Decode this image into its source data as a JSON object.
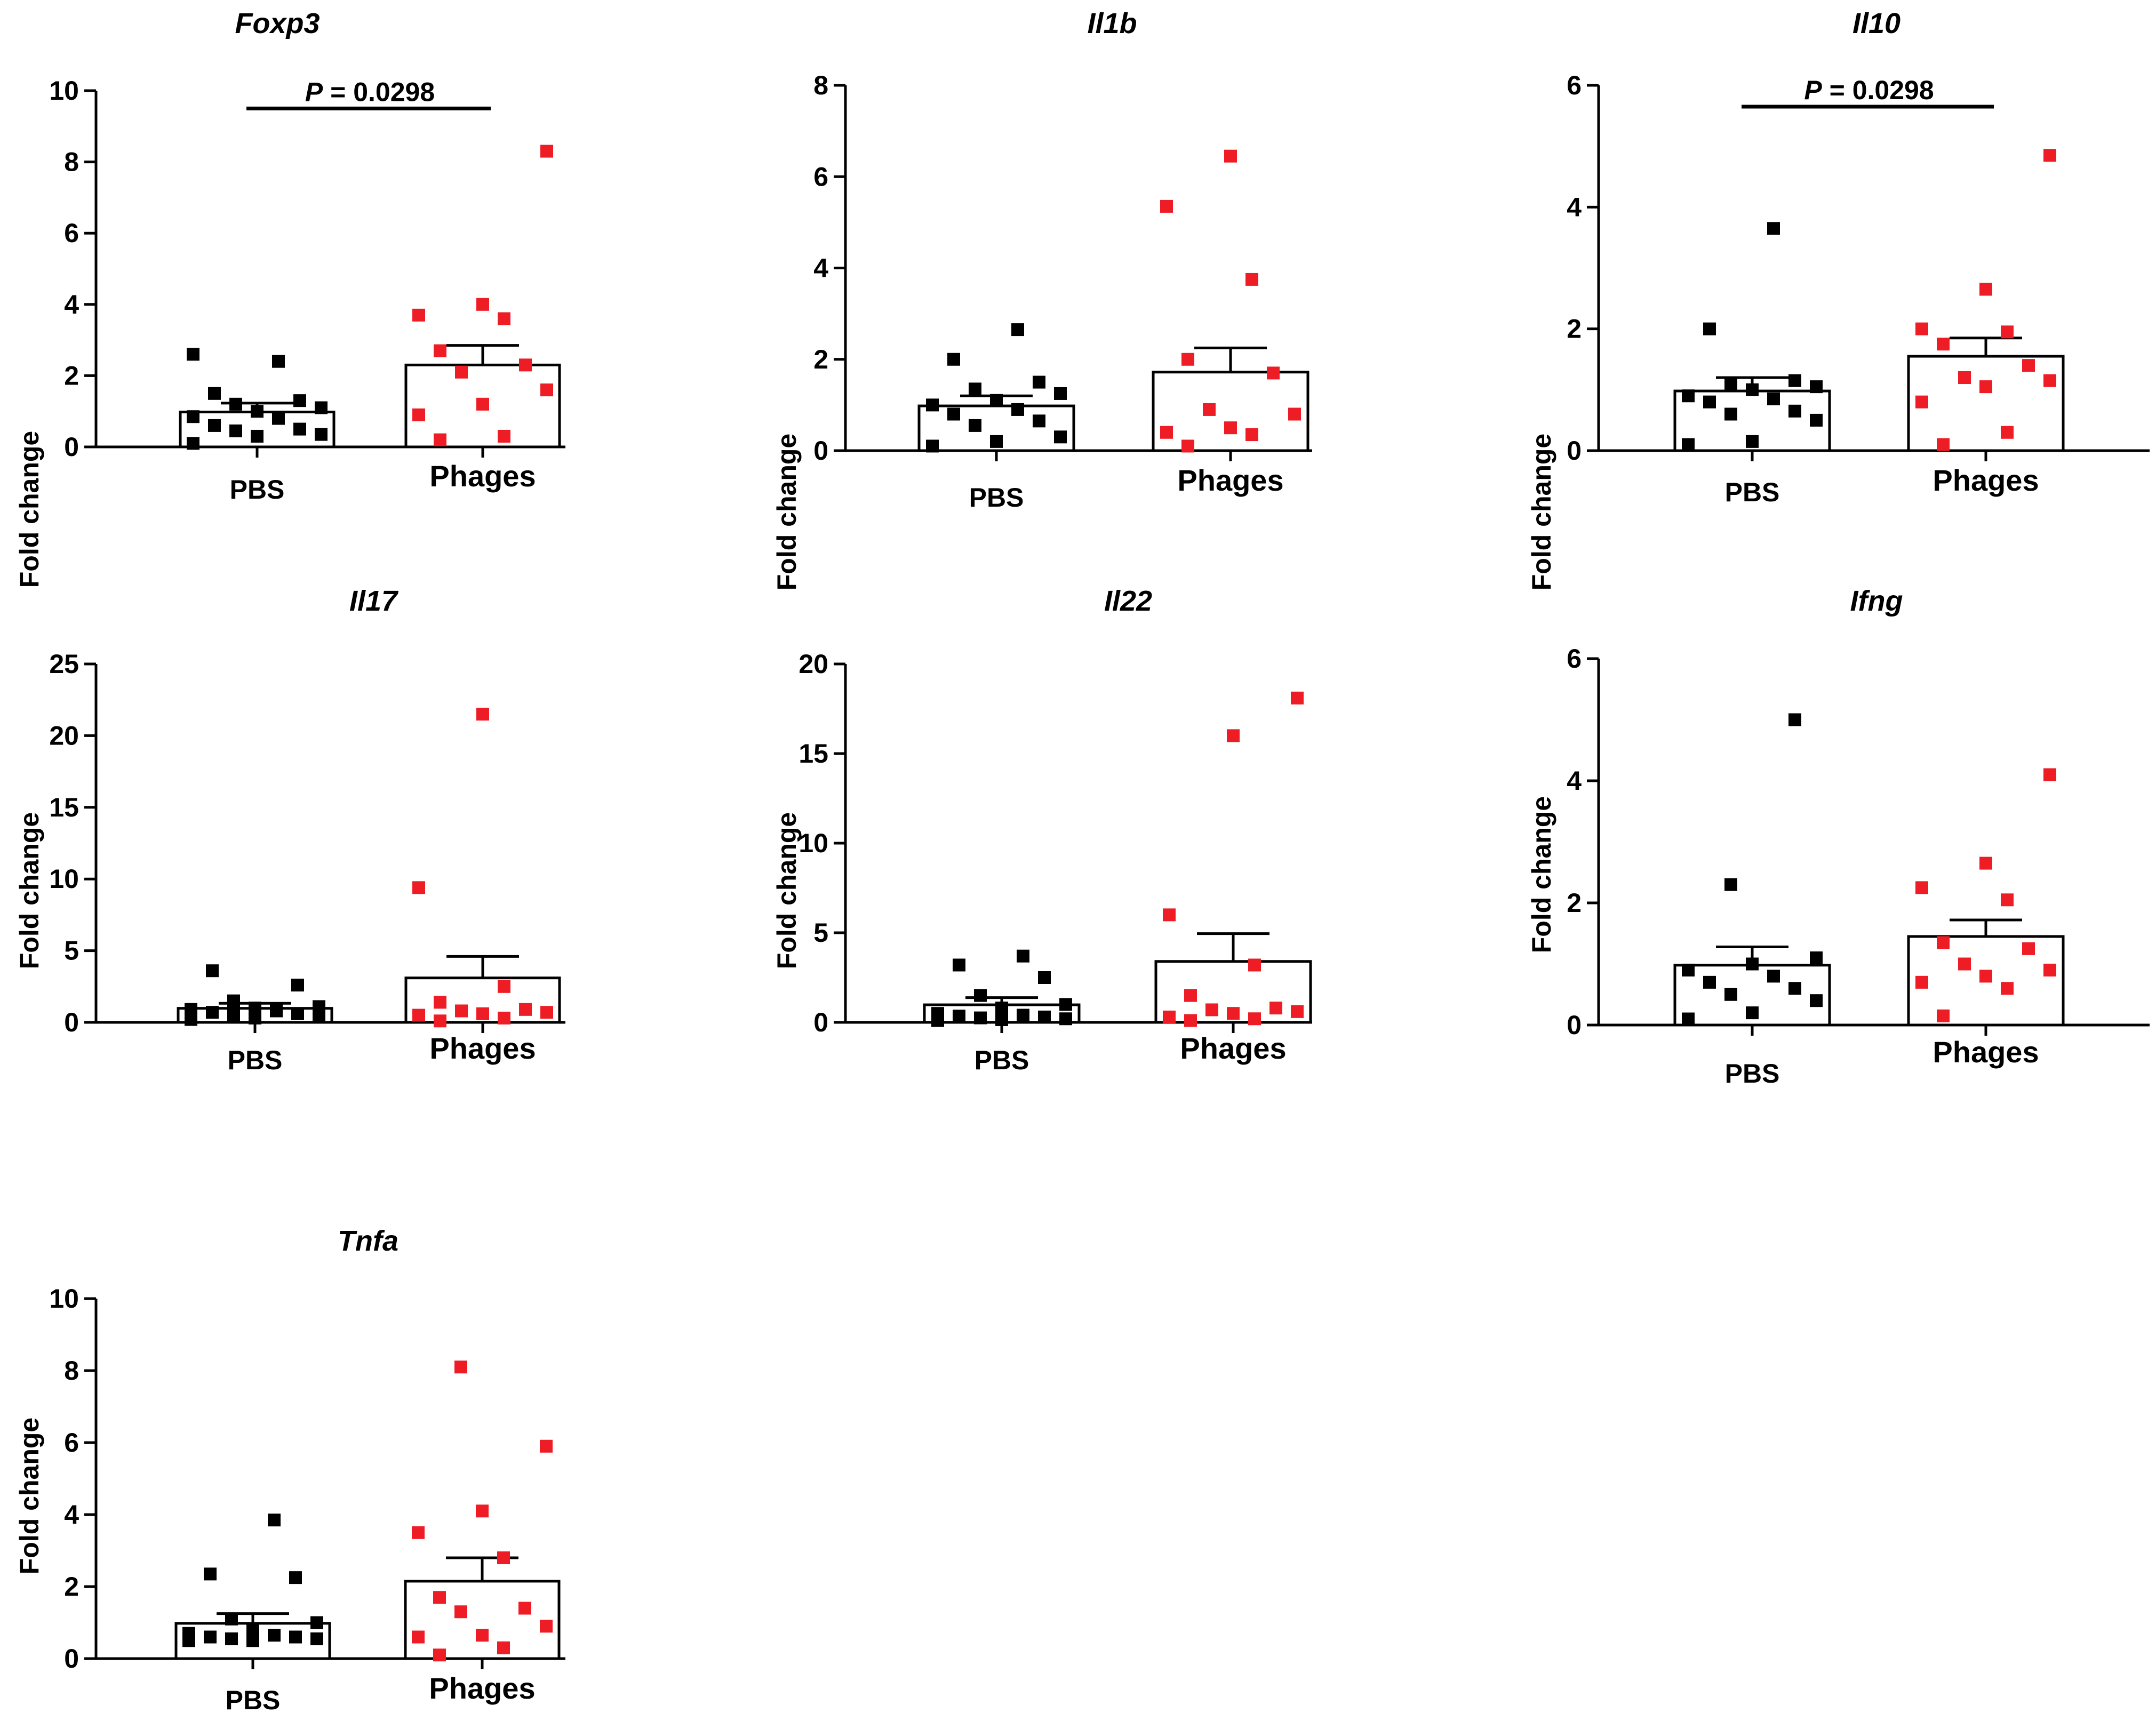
{
  "colors": {
    "pbs": "#000000",
    "phages": "#ee1c25",
    "axis": "#000000",
    "bar_fill": "#ffffff"
  },
  "chart_data": [
    {
      "type": "bar",
      "title": "Foxp3",
      "ylabel": "Fold change",
      "categories": [
        "PBS",
        "Phages"
      ],
      "ylim": [
        0,
        10
      ],
      "yticks": [
        0,
        2,
        4,
        6,
        8,
        10
      ],
      "means": [
        0.98,
        2.3
      ],
      "sem": [
        0.25,
        0.55
      ],
      "significance": {
        "text": "P = 0.0298",
        "y": 9.5
      },
      "series": [
        {
          "category": "PBS",
          "points": [
            0.1,
            0.3,
            0.35,
            0.45,
            0.5,
            0.6,
            0.8,
            0.85,
            1.0,
            1.1,
            1.2,
            1.3,
            1.5,
            2.4,
            2.6
          ]
        },
        {
          "category": "Phages",
          "points": [
            0.2,
            0.3,
            0.9,
            1.2,
            1.6,
            2.1,
            2.3,
            2.7,
            3.6,
            3.7,
            4.0,
            8.3
          ]
        }
      ]
    },
    {
      "type": "bar",
      "title": "Il1b",
      "ylabel": "Fold change",
      "categories": [
        "PBS",
        "Phages"
      ],
      "ylim": [
        0,
        8
      ],
      "yticks": [
        0,
        2,
        4,
        6,
        8
      ],
      "means": [
        0.98,
        1.72
      ],
      "sem": [
        0.22,
        0.53
      ],
      "series": [
        {
          "category": "PBS",
          "points": [
            0.1,
            0.2,
            0.3,
            0.55,
            0.65,
            0.8,
            0.9,
            1.0,
            1.1,
            1.25,
            1.35,
            1.5,
            2.0,
            2.65
          ]
        },
        {
          "category": "Phages",
          "points": [
            0.1,
            0.35,
            0.4,
            0.5,
            0.8,
            0.9,
            1.7,
            2.0,
            3.75,
            5.35,
            6.45
          ]
        }
      ]
    },
    {
      "type": "bar",
      "title": "Il10",
      "ylabel": "Fold change",
      "categories": [
        "PBS",
        "Phages"
      ],
      "ylim": [
        0,
        6
      ],
      "yticks": [
        0,
        2,
        4,
        6
      ],
      "means": [
        0.98,
        1.55
      ],
      "sem": [
        0.22,
        0.3
      ],
      "significance": {
        "text": "P = 0.0298",
        "y": 5.65
      },
      "series": [
        {
          "category": "PBS",
          "points": [
            0.1,
            0.15,
            0.5,
            0.6,
            0.65,
            0.8,
            0.85,
            0.9,
            1.0,
            1.05,
            1.1,
            1.15,
            2.0,
            3.65
          ]
        },
        {
          "category": "Phages",
          "points": [
            0.1,
            0.3,
            0.8,
            1.05,
            1.15,
            1.2,
            1.4,
            1.75,
            1.95,
            2.0,
            2.65,
            4.85
          ]
        }
      ]
    },
    {
      "type": "bar",
      "title": "Il17",
      "ylabel": "Fold change",
      "categories": [
        "PBS",
        "Phages"
      ],
      "ylim": [
        0,
        25
      ],
      "yticks": [
        0,
        5,
        10,
        15,
        20,
        25
      ],
      "means": [
        0.98,
        3.1
      ],
      "sem": [
        0.35,
        1.5
      ],
      "series": [
        {
          "category": "PBS",
          "points": [
            0.2,
            0.3,
            0.4,
            0.5,
            0.6,
            0.7,
            0.8,
            0.9,
            1.0,
            1.1,
            1.5,
            2.6,
            3.6
          ]
        },
        {
          "category": "Phages",
          "points": [
            0.1,
            0.3,
            0.5,
            0.6,
            0.7,
            0.8,
            0.9,
            1.4,
            2.5,
            9.4,
            21.5
          ]
        }
      ]
    },
    {
      "type": "bar",
      "title": "Il22",
      "ylabel": "Fold change",
      "categories": [
        "PBS",
        "Phages"
      ],
      "ylim": [
        0,
        20
      ],
      "yticks": [
        0,
        5,
        10,
        15,
        20
      ],
      "means": [
        0.98,
        3.4
      ],
      "sem": [
        0.4,
        1.55
      ],
      "series": [
        {
          "category": "PBS",
          "points": [
            0.1,
            0.15,
            0.2,
            0.25,
            0.3,
            0.35,
            0.4,
            0.5,
            0.8,
            1.0,
            1.5,
            2.5,
            3.2,
            3.7
          ]
        },
        {
          "category": "Phages",
          "points": [
            0.1,
            0.2,
            0.3,
            0.5,
            0.6,
            0.7,
            0.8,
            1.5,
            3.2,
            6.0,
            16.0,
            18.1
          ]
        }
      ]
    },
    {
      "type": "bar",
      "title": "Ifng",
      "ylabel": "Fold change",
      "categories": [
        "PBS",
        "Phages"
      ],
      "ylim": [
        0,
        6
      ],
      "yticks": [
        0,
        2,
        4,
        6
      ],
      "means": [
        0.98,
        1.45
      ],
      "sem": [
        0.3,
        0.27
      ],
      "series": [
        {
          "category": "PBS",
          "points": [
            0.1,
            0.2,
            0.4,
            0.5,
            0.6,
            0.7,
            0.8,
            0.9,
            1.0,
            1.1,
            2.3,
            5.0
          ]
        },
        {
          "category": "Phages",
          "points": [
            0.15,
            0.6,
            0.7,
            0.8,
            0.9,
            1.0,
            1.25,
            1.35,
            2.05,
            2.25,
            2.65,
            4.1
          ]
        }
      ]
    },
    {
      "type": "bar",
      "title": "Tnfa",
      "ylabel": "Fold change",
      "categories": [
        "PBS",
        "Phages"
      ],
      "ylim": [
        0,
        10
      ],
      "yticks": [
        0,
        2,
        4,
        6,
        8,
        10
      ],
      "means": [
        0.98,
        2.15
      ],
      "sem": [
        0.27,
        0.65
      ],
      "series": [
        {
          "category": "PBS",
          "points": [
            0.5,
            0.5,
            0.55,
            0.55,
            0.6,
            0.6,
            0.65,
            0.7,
            0.8,
            1.0,
            1.1,
            2.25,
            2.35,
            3.85
          ]
        },
        {
          "category": "Phages",
          "points": [
            0.1,
            0.3,
            0.6,
            0.65,
            0.9,
            1.3,
            1.4,
            1.7,
            2.8,
            3.5,
            4.1,
            5.9,
            8.1
          ]
        }
      ]
    }
  ]
}
